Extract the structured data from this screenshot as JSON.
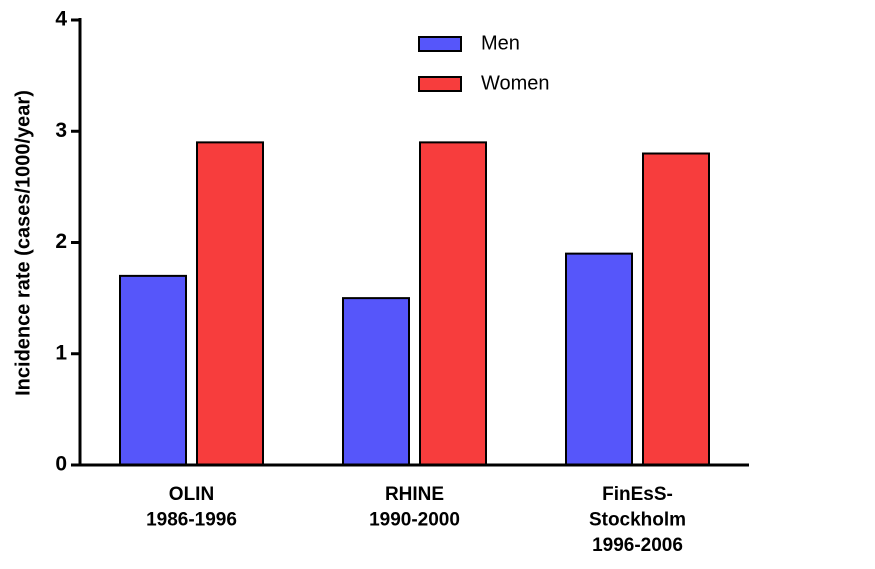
{
  "chart_data": {
    "type": "bar",
    "y_label": "Incidence rate (cases/1000/year)",
    "categories": [
      "OLIN\n1986-1996",
      "RHINE\n1990-2000",
      "FinEsS-\nStockholm\n1996-2006"
    ],
    "series": [
      {
        "name": "Men",
        "color": "#5656fa",
        "values": [
          1.7,
          1.5,
          1.9
        ]
      },
      {
        "name": "Women",
        "color": "#f73d3d",
        "values": [
          2.9,
          2.9,
          2.8
        ]
      }
    ],
    "ylim": [
      0,
      4
    ],
    "yticks": [
      0,
      1,
      2,
      3,
      4
    ],
    "legend": "top"
  }
}
